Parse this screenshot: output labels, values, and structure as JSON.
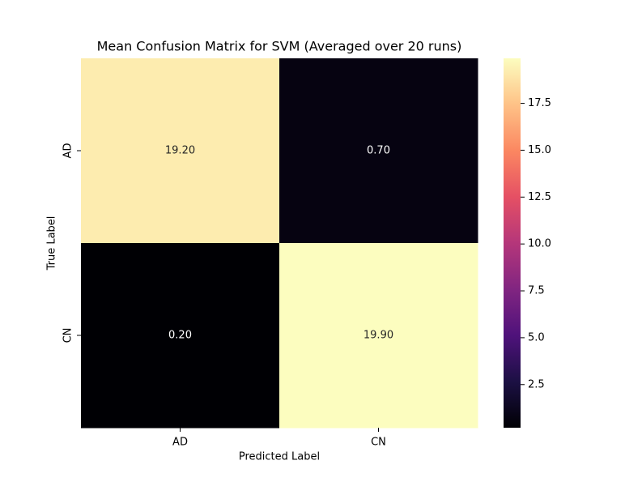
{
  "chart_data": {
    "type": "heatmap",
    "title": "Mean Confusion Matrix for SVM (Averaged over 20 runs)",
    "xlabel": "Predicted Label",
    "ylabel": "True Label",
    "x_categories": [
      "AD",
      "CN"
    ],
    "y_categories": [
      "AD",
      "CN"
    ],
    "values": [
      [
        19.2,
        0.7
      ],
      [
        0.2,
        19.9
      ]
    ],
    "value_labels": [
      [
        "19.20",
        "0.70"
      ],
      [
        "0.20",
        "19.90"
      ]
    ],
    "colormap": "magma",
    "colorbar_lim": [
      0.2,
      19.9
    ],
    "colorbar_ticks": [
      2.5,
      {
        "value": 5,
        "label": "5.0"
      },
      7.5,
      {
        "value": 10,
        "label": "10.0"
      },
      12.5,
      {
        "value": 15,
        "label": "15.0"
      },
      17.5
    ]
  }
}
